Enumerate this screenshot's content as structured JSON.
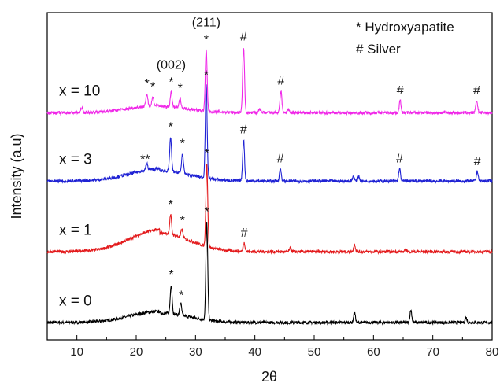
{
  "chart_data": {
    "type": "line",
    "xlabel": "2θ",
    "ylabel": "Intensity (a.u)",
    "xlim": [
      5,
      80
    ],
    "xticks": [
      10,
      20,
      30,
      40,
      50,
      60,
      70,
      80
    ],
    "y_tick_labels": false,
    "grid": false,
    "legend_position": "top-right",
    "legend": [
      "* Hydroxyapatite",
      "# Silver"
    ],
    "plane_annotations": [
      {
        "text": "(211)",
        "x": 31.8,
        "series": "x = 10"
      },
      {
        "text": "(002)",
        "x": 25.9,
        "series": "x = 10"
      }
    ],
    "series": [
      {
        "name": "x = 0",
        "color": "#000000",
        "baseline": 0.0,
        "bump": 0.045,
        "peaks": [
          [
            25.9,
            0.12
          ],
          [
            27.5,
            0.05
          ],
          [
            31.9,
            0.4
          ],
          [
            56.8,
            0.04
          ],
          [
            66.3,
            0.05
          ],
          [
            75.6,
            0.02
          ]
        ],
        "markers": [
          {
            "x": 25.9,
            "text": "*"
          },
          {
            "x": 27.6,
            "text": "*"
          },
          {
            "x": 31.9,
            "text": "*"
          }
        ]
      },
      {
        "name": "x = 1",
        "color": "#e31a1c",
        "baseline": 0.29,
        "bump": 0.09,
        "peaks": [
          [
            25.8,
            0.08
          ],
          [
            27.7,
            0.035
          ],
          [
            31.9,
            0.34
          ],
          [
            38.2,
            0.035
          ],
          [
            46.0,
            0.015
          ],
          [
            56.8,
            0.03
          ],
          [
            65.5,
            0.01
          ]
        ],
        "markers": [
          {
            "x": 25.8,
            "text": "*"
          },
          {
            "x": 27.8,
            "text": "*"
          },
          {
            "x": 31.9,
            "text": "*"
          },
          {
            "x": 38.2,
            "text": "#"
          }
        ]
      },
      {
        "name": "x = 3",
        "color": "#1f22d4",
        "baseline": 0.58,
        "bump": 0.05,
        "peaks": [
          [
            21.8,
            0.025
          ],
          [
            25.8,
            0.14
          ],
          [
            27.8,
            0.08
          ],
          [
            31.8,
            0.38
          ],
          [
            38.1,
            0.17
          ],
          [
            44.3,
            0.05
          ],
          [
            56.6,
            0.02
          ],
          [
            57.5,
            0.02
          ],
          [
            64.4,
            0.05
          ],
          [
            77.5,
            0.04
          ]
        ],
        "markers": [
          {
            "x": 21.5,
            "text": "**"
          },
          {
            "x": 25.8,
            "text": "*"
          },
          {
            "x": 27.8,
            "text": "*"
          },
          {
            "x": 31.8,
            "text": "*"
          },
          {
            "x": 38.1,
            "text": "#"
          },
          {
            "x": 44.3,
            "text": "#"
          },
          {
            "x": 64.4,
            "text": "#"
          },
          {
            "x": 77.5,
            "text": "#"
          }
        ]
      },
      {
        "name": "x = 10",
        "color": "#f028e8",
        "baseline": 0.86,
        "bump": 0.03,
        "peaks": [
          [
            10.8,
            0.02
          ],
          [
            21.8,
            0.05
          ],
          [
            22.8,
            0.035
          ],
          [
            25.9,
            0.06
          ],
          [
            27.4,
            0.04
          ],
          [
            31.8,
            0.25
          ],
          [
            38.1,
            0.27
          ],
          [
            40.8,
            0.02
          ],
          [
            44.4,
            0.09
          ],
          [
            45.6,
            0.015
          ],
          [
            64.5,
            0.05
          ],
          [
            77.4,
            0.05
          ]
        ],
        "markers": [
          {
            "x": 21.8,
            "text": "*"
          },
          {
            "x": 22.8,
            "text": "*"
          },
          {
            "x": 25.9,
            "text": "*"
          },
          {
            "x": 27.4,
            "text": "*"
          },
          {
            "x": 31.8,
            "text": "*"
          },
          {
            "x": 38.1,
            "text": "#"
          },
          {
            "x": 44.4,
            "text": "#"
          },
          {
            "x": 64.5,
            "text": "#"
          },
          {
            "x": 77.4,
            "text": "#"
          }
        ]
      }
    ]
  }
}
